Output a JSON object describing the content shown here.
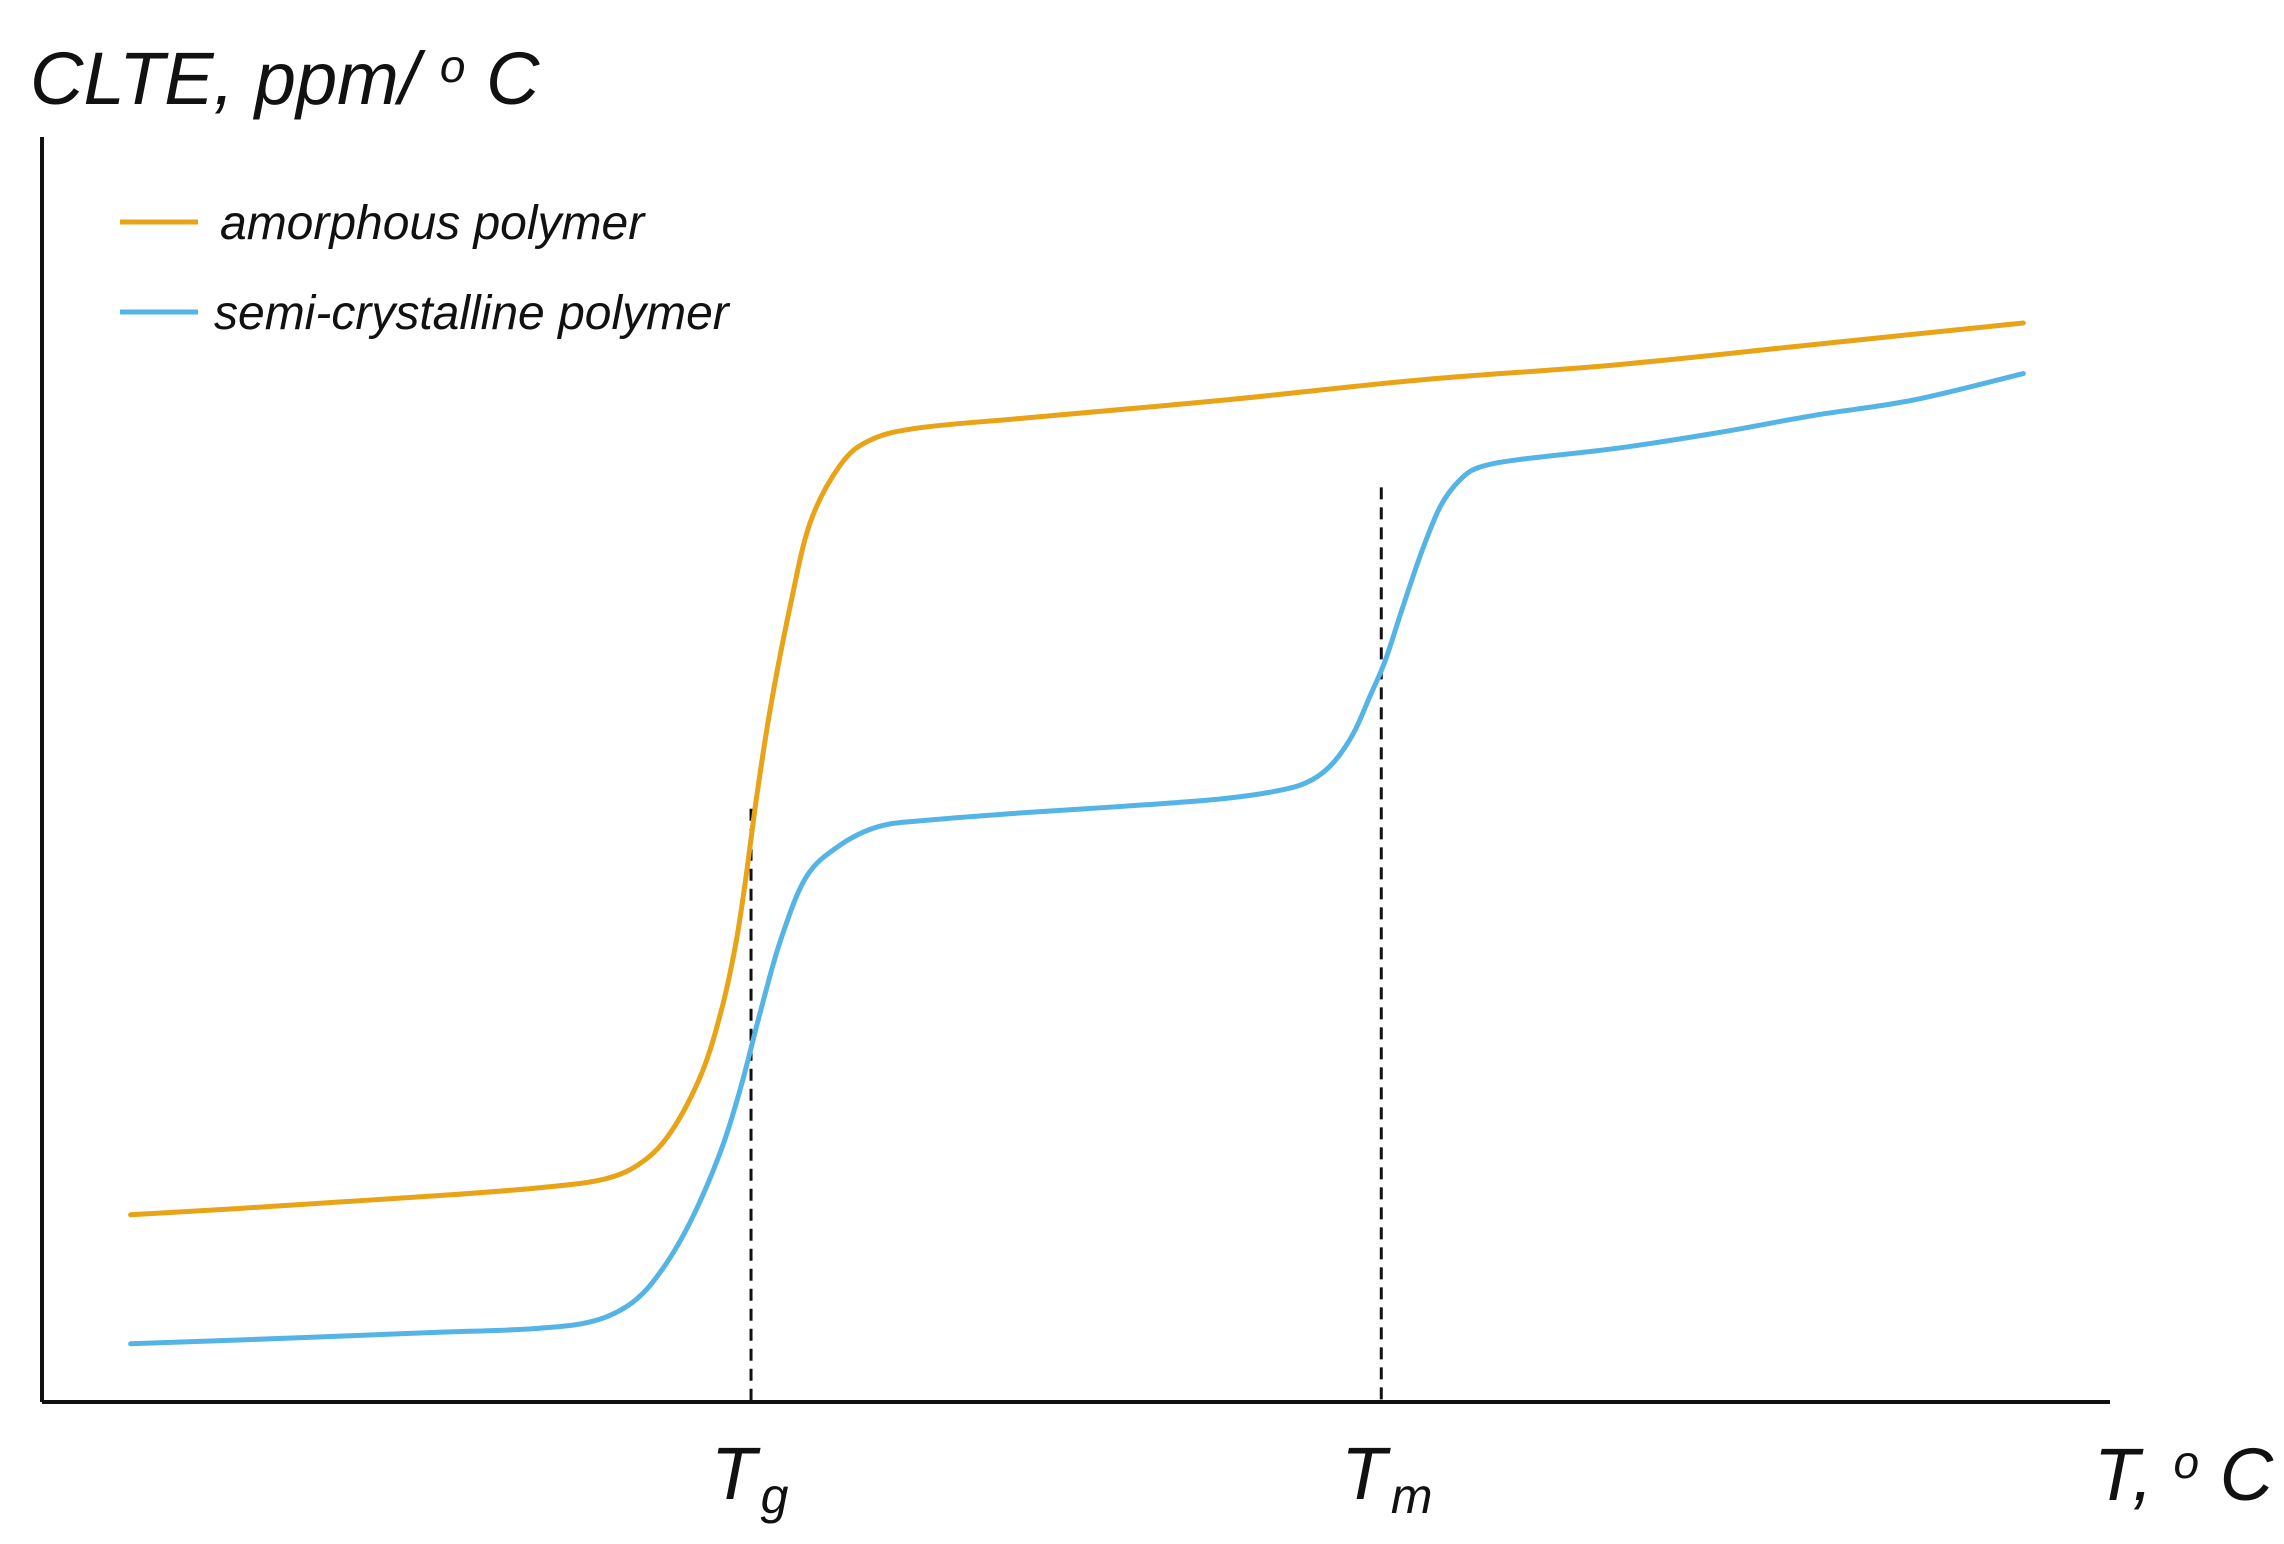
{
  "chart_data": {
    "type": "line",
    "ylabel": {
      "main": "CLTE, ppm/",
      "sup": "o",
      "end": "C"
    },
    "xlabel": {
      "main": "T, ",
      "sup": "o",
      "end": "C"
    },
    "xticks": [
      {
        "id": "tg",
        "main": "T",
        "sub": "g",
        "x": 36.0
      },
      {
        "id": "tm",
        "main": "T",
        "sub": "m",
        "x": 68.0
      }
    ],
    "xlim": [
      0,
      105
    ],
    "ylim": [
      0,
      100
    ],
    "legend_position": "top-left",
    "grid": false,
    "series": [
      {
        "name": "amorphous polymer",
        "color": "#E8A317",
        "points": [
          [
            4.5,
            14.8
          ],
          [
            10,
            15.3
          ],
          [
            15,
            15.8
          ],
          [
            20,
            16.3
          ],
          [
            25,
            16.9
          ],
          [
            28.5,
            17.6
          ],
          [
            30.5,
            19.0
          ],
          [
            32.0,
            21.5
          ],
          [
            33.5,
            26.0
          ],
          [
            34.5,
            31.0
          ],
          [
            35.2,
            36.0
          ],
          [
            35.7,
            41.0
          ],
          [
            36.3,
            48.0
          ],
          [
            37.0,
            55.0
          ],
          [
            38.0,
            63.0
          ],
          [
            39.0,
            69.5
          ],
          [
            40.5,
            74.0
          ],
          [
            42.0,
            76.0
          ],
          [
            44.5,
            77.0
          ],
          [
            50,
            77.8
          ],
          [
            60,
            79.2
          ],
          [
            70,
            80.8
          ],
          [
            80,
            82.0
          ],
          [
            90,
            83.6
          ],
          [
            100.6,
            85.3
          ]
        ]
      },
      {
        "name": "semi-crystalline polymer",
        "color": "#55B4E6",
        "points": [
          [
            4.5,
            4.6
          ],
          [
            10,
            4.9
          ],
          [
            15,
            5.2
          ],
          [
            20,
            5.5
          ],
          [
            25,
            5.8
          ],
          [
            28.0,
            6.4
          ],
          [
            30.0,
            7.9
          ],
          [
            31.5,
            10.5
          ],
          [
            33.0,
            14.5
          ],
          [
            34.5,
            20.0
          ],
          [
            35.5,
            25.0
          ],
          [
            36.5,
            31.0
          ],
          [
            37.5,
            36.5
          ],
          [
            38.8,
            41.5
          ],
          [
            40.5,
            44.0
          ],
          [
            42.5,
            45.5
          ],
          [
            45.0,
            46.0
          ],
          [
            50,
            46.6
          ],
          [
            55,
            47.1
          ],
          [
            60,
            47.7
          ],
          [
            63.0,
            48.4
          ],
          [
            64.5,
            49.2
          ],
          [
            65.6,
            50.6
          ],
          [
            66.6,
            52.9
          ],
          [
            67.4,
            55.7
          ],
          [
            68.2,
            58.6
          ],
          [
            69.0,
            62.4
          ],
          [
            70.0,
            67.0
          ],
          [
            71.0,
            70.8
          ],
          [
            72.0,
            72.9
          ],
          [
            73.0,
            73.9
          ],
          [
            75.0,
            74.5
          ],
          [
            80,
            75.4
          ],
          [
            85,
            76.6
          ],
          [
            90,
            78.0
          ],
          [
            95,
            79.2
          ],
          [
            100.6,
            81.3
          ]
        ]
      }
    ],
    "guides": [
      {
        "id": "tg",
        "x": 36.0,
        "y": 46.9
      },
      {
        "id": "tm",
        "x": 68.0,
        "y": 72.3
      }
    ]
  }
}
